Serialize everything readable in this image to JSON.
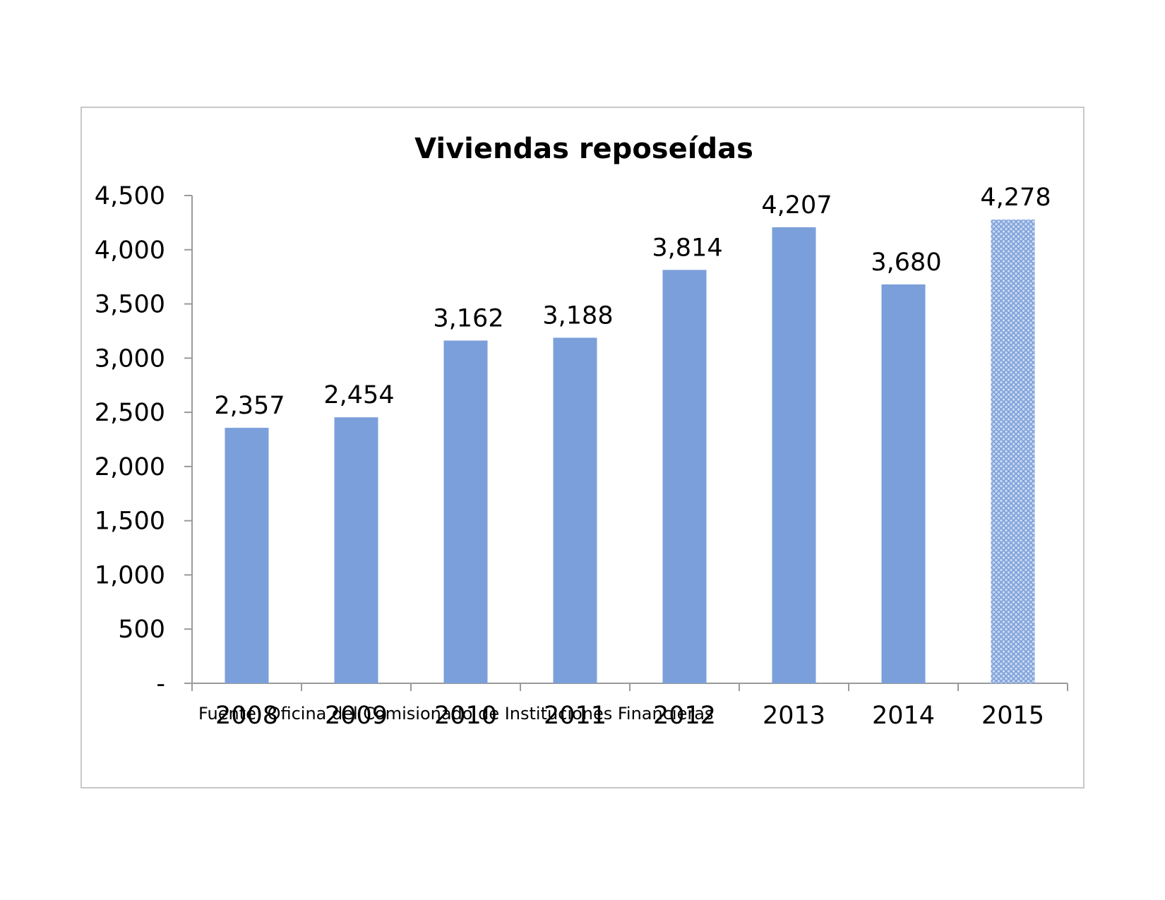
{
  "chart_data": {
    "type": "bar",
    "title": "Viviendas reposeídas",
    "categories": [
      "2008",
      "2009",
      "2010",
      "2011",
      "2012",
      "2013",
      "2014",
      "2015"
    ],
    "values": [
      2357,
      2454,
      3162,
      3188,
      3814,
      4207,
      3680,
      4278
    ],
    "data_labels": [
      "2,357",
      "2,454",
      "3,162",
      "3,188",
      "3,814",
      "4,207",
      "3,680",
      "4,278"
    ],
    "ylim": [
      0,
      4500
    ],
    "yticks": [
      0,
      500,
      1000,
      1500,
      2000,
      2500,
      3000,
      3500,
      4000,
      4500
    ],
    "ytick_labels": [
      "-",
      "500",
      "1,000",
      "1,500",
      "2,000",
      "2,500",
      "3,000",
      "3,500",
      "4,000",
      "4,500"
    ],
    "grid": false,
    "legend": "none",
    "bar_color": "#7b9fda",
    "highlight_pattern": "crosshatch",
    "highlight_index": 7,
    "source": "Fuente: Oficina del Comisionado de Instituciones Financieras"
  }
}
